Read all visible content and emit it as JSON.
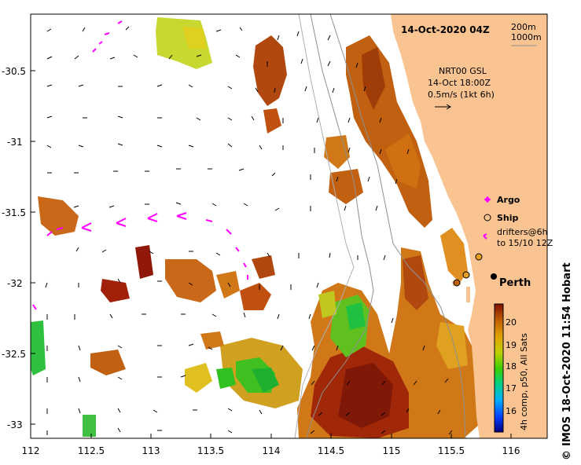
{
  "map": {
    "title": "14-Oct-2020 04Z",
    "lon_ticks": [
      "112",
      "112.5",
      "113",
      "113.5",
      "114",
      "114.5",
      "115",
      "115.5",
      "116"
    ],
    "lat_ticks": [
      "-30.5",
      "-31",
      "-31.5",
      "-32",
      "-32.5",
      "-33"
    ],
    "isobaths": {
      "line1": "200m",
      "line2": "1000m"
    },
    "current_legend": {
      "line1": "NRT00 GSL",
      "line2": "14-Oct 18:00Z",
      "line3": "0.5m/s (1kt 6h)"
    },
    "markers_legend": {
      "argo": "Argo",
      "ship": "Ship",
      "drifters_line1": "drifters@6h",
      "drifters_line2": "to 15/10 12Z"
    },
    "place": "Perth",
    "colorbar": {
      "ticks": [
        "20",
        "19",
        "18",
        "17",
        "16"
      ],
      "caption": "4h comp, p50, All Sats"
    },
    "credit": "IMOS 18-Oct-2020 11:54 Hobart",
    "copyright": "©",
    "colors": {
      "land": "#f9c492",
      "ocean": "#ffffff",
      "argo": "#ff00ff",
      "drifters": "#ff00ff"
    }
  }
}
